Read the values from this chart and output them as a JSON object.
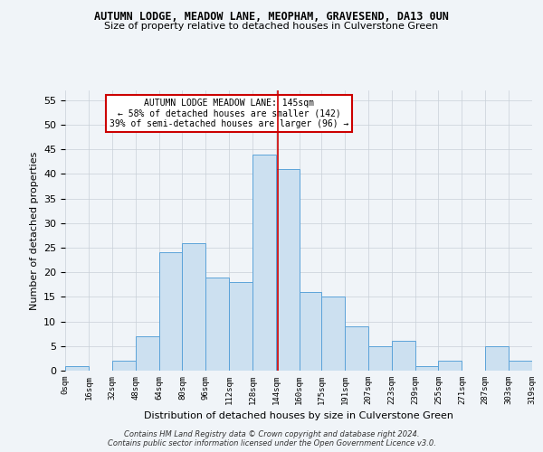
{
  "title": "AUTUMN LODGE, MEADOW LANE, MEOPHAM, GRAVESEND, DA13 0UN",
  "subtitle": "Size of property relative to detached houses in Culverstone Green",
  "xlabel": "Distribution of detached houses by size in Culverstone Green",
  "ylabel": "Number of detached properties",
  "footnote1": "Contains HM Land Registry data © Crown copyright and database right 2024.",
  "footnote2": "Contains public sector information licensed under the Open Government Licence v3.0.",
  "annotation_title": "AUTUMN LODGE MEADOW LANE: 145sqm",
  "annotation_line1": "← 58% of detached houses are smaller (142)",
  "annotation_line2": "39% of semi-detached houses are larger (96) →",
  "bar_left_edges": [
    0,
    16,
    32,
    48,
    64,
    80,
    96,
    112,
    128,
    144,
    160,
    175,
    191,
    207,
    223,
    239,
    255,
    271,
    287,
    303
  ],
  "bar_widths": [
    16,
    16,
    16,
    16,
    16,
    16,
    16,
    16,
    16,
    16,
    15,
    16,
    16,
    16,
    16,
    16,
    16,
    16,
    16,
    16
  ],
  "bar_values": [
    1,
    0,
    2,
    7,
    24,
    26,
    19,
    18,
    44,
    41,
    16,
    15,
    9,
    5,
    6,
    1,
    2,
    0,
    5,
    2
  ],
  "bar_color": "#cce0f0",
  "bar_edgecolor": "#5ba3d9",
  "marker_x": 145,
  "marker_color": "#cc0000",
  "ylim": [
    0,
    57
  ],
  "yticks": [
    0,
    5,
    10,
    15,
    20,
    25,
    30,
    35,
    40,
    45,
    50,
    55
  ],
  "xtick_labels": [
    "0sqm",
    "16sqm",
    "32sqm",
    "48sqm",
    "64sqm",
    "80sqm",
    "96sqm",
    "112sqm",
    "128sqm",
    "144sqm",
    "160sqm",
    "175sqm",
    "191sqm",
    "207sqm",
    "223sqm",
    "239sqm",
    "255sqm",
    "271sqm",
    "287sqm",
    "303sqm",
    "319sqm"
  ],
  "xtick_positions": [
    0,
    16,
    32,
    48,
    64,
    80,
    96,
    112,
    128,
    144,
    160,
    175,
    191,
    207,
    223,
    239,
    255,
    271,
    287,
    303,
    319
  ],
  "xlim": [
    0,
    319
  ],
  "bg_color": "#f0f4f8",
  "grid_color": "#c8d0d8"
}
